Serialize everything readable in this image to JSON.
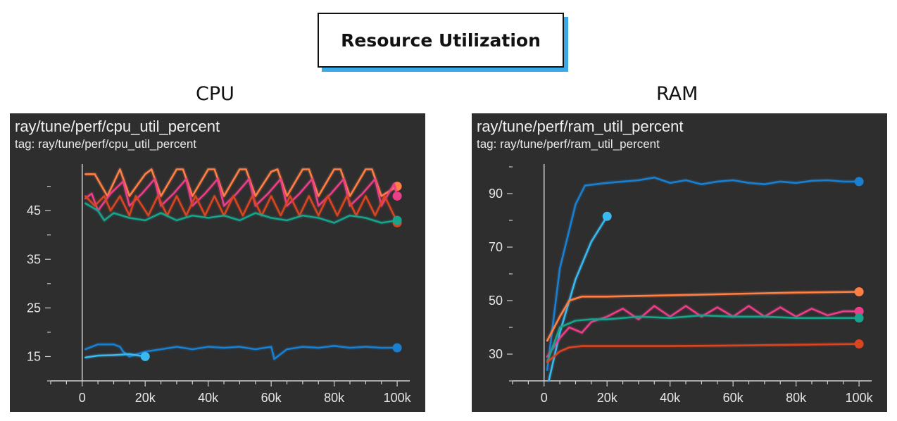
{
  "header": {
    "title": "Resource Utilization"
  },
  "sections": {
    "cpu_label": "CPU",
    "ram_label": "RAM"
  },
  "colors": {
    "panel_bg": "#2e2e2e",
    "orange": "#ff7f45",
    "pink": "#ea3f88",
    "red": "#d94520",
    "teal": "#18a38c",
    "blue": "#1b7fcf",
    "lightblue": "#3ab8f0",
    "title_shadow": "#3aa9e8"
  },
  "chart_data": [
    {
      "type": "line",
      "title": "ray/tune/perf/cpu_util_percent",
      "subtitle": "tag: ray/tune/perf/cpu_util_percent",
      "xlabel": "",
      "ylabel": "",
      "xlim": [
        -10000,
        104000
      ],
      "ylim": [
        10,
        54
      ],
      "x_ticks": [
        0,
        20000,
        40000,
        60000,
        80000,
        100000
      ],
      "x_tick_labels": [
        "0",
        "20k",
        "40k",
        "60k",
        "80k",
        "100k"
      ],
      "y_ticks": [
        15,
        25,
        35,
        45
      ],
      "y_tick_labels": [
        "15",
        "25",
        "35",
        "45"
      ],
      "grid": false,
      "legend": "none",
      "series": [
        {
          "color": "#ff7f45",
          "x": [
            1000,
            4000,
            8000,
            12000,
            15000,
            20000,
            22000,
            25000,
            30000,
            32000,
            35000,
            40000,
            42000,
            45000,
            50000,
            52000,
            55000,
            60000,
            62000,
            65000,
            70000,
            72000,
            75000,
            80000,
            82000,
            85000,
            90000,
            92000,
            95000,
            100000
          ],
          "y": [
            52.5,
            52.5,
            48,
            53.5,
            48,
            52.5,
            53.5,
            48,
            53.5,
            53.5,
            48,
            53.5,
            53.5,
            48,
            53.5,
            53.5,
            48,
            53,
            53.5,
            48,
            53.5,
            53.5,
            48,
            53.5,
            53.5,
            48,
            53.5,
            53.5,
            48,
            50
          ]
        },
        {
          "color": "#ea3f88",
          "x": [
            1000,
            3000,
            5000,
            9000,
            13000,
            15000,
            19000,
            23000,
            25000,
            29000,
            33000,
            35000,
            39000,
            43000,
            45000,
            49000,
            53000,
            55000,
            59000,
            63000,
            65000,
            69000,
            73000,
            75000,
            79000,
            83000,
            85000,
            89000,
            93000,
            95000,
            99000,
            100000
          ],
          "y": [
            47.5,
            48.5,
            45,
            48.5,
            51,
            46,
            48.5,
            51.5,
            46,
            48.5,
            51.5,
            46,
            48.5,
            51.5,
            46,
            48.5,
            51.5,
            46,
            48.5,
            51.5,
            46,
            48.5,
            51.5,
            46,
            48.5,
            51.5,
            46,
            48.5,
            51.5,
            46,
            50.5,
            48
          ]
        },
        {
          "color": "#d94520",
          "x": [
            1000,
            4000,
            7000,
            9000,
            12000,
            15000,
            17000,
            21000,
            24000,
            27000,
            30000,
            33000,
            36000,
            39000,
            42000,
            45000,
            48000,
            51000,
            54000,
            57000,
            60000,
            63000,
            66000,
            69000,
            72000,
            75000,
            78000,
            81000,
            84000,
            87000,
            90000,
            93000,
            96000,
            99000,
            100000
          ],
          "y": [
            48,
            46,
            48,
            45,
            48,
            44,
            48,
            44,
            48,
            44,
            48,
            44,
            48,
            44,
            48,
            44,
            48,
            44,
            48,
            44,
            48,
            44,
            48,
            44,
            48,
            44,
            48,
            44,
            48,
            44,
            48,
            44,
            48,
            44,
            42.5
          ]
        },
        {
          "color": "#18a38c",
          "x": [
            1000,
            5000,
            7000,
            10000,
            15000,
            20000,
            25000,
            30000,
            35000,
            40000,
            45000,
            50000,
            55000,
            60000,
            65000,
            70000,
            75000,
            80000,
            85000,
            90000,
            95000,
            100000
          ],
          "y": [
            46.5,
            45,
            43,
            44.5,
            43.5,
            43,
            44.5,
            43,
            44,
            43.5,
            44,
            43,
            44.5,
            43.5,
            43,
            44,
            43.5,
            42.5,
            44,
            43.5,
            42.5,
            43
          ]
        },
        {
          "color": "#1b7fcf",
          "x": [
            1000,
            5000,
            10000,
            12000,
            13000,
            15000,
            20000,
            25000,
            30000,
            35000,
            40000,
            45000,
            50000,
            55000,
            60000,
            61000,
            65000,
            70000,
            75000,
            80000,
            85000,
            90000,
            95000,
            100000
          ],
          "y": [
            16.5,
            17.5,
            17.5,
            17,
            16,
            15,
            16,
            16.5,
            17,
            16.5,
            17,
            16.8,
            17,
            16.5,
            17,
            14.5,
            16.5,
            17,
            16.8,
            17.2,
            16.8,
            17,
            16.8,
            16.8
          ]
        },
        {
          "color": "#3ab8f0",
          "x": [
            1000,
            5000,
            10000,
            15000,
            20000
          ],
          "y": [
            14.8,
            15.2,
            15.3,
            15.5,
            15
          ]
        }
      ]
    },
    {
      "type": "line",
      "title": "ray/tune/perf/ram_util_percent",
      "subtitle": "tag: ray/tune/perf/ram_util_percent",
      "xlabel": "",
      "ylabel": "",
      "xlim": [
        -10000,
        104000
      ],
      "ylim": [
        20,
        100
      ],
      "x_ticks": [
        0,
        20000,
        40000,
        60000,
        80000,
        100000
      ],
      "x_tick_labels": [
        "0",
        "20k",
        "40k",
        "60k",
        "80k",
        "100k"
      ],
      "y_ticks": [
        30,
        50,
        70,
        90
      ],
      "y_tick_labels": [
        "30",
        "50",
        "70",
        "90"
      ],
      "grid": false,
      "legend": "none",
      "series": [
        {
          "color": "#1b7fcf",
          "x": [
            1000,
            5000,
            10000,
            13000,
            20000,
            30000,
            35000,
            40000,
            45000,
            50000,
            55000,
            60000,
            65000,
            70000,
            75000,
            80000,
            85000,
            90000,
            95000,
            100000
          ],
          "y": [
            24,
            62,
            86,
            93,
            94,
            95,
            96,
            94,
            95,
            93.5,
            94.5,
            95,
            94,
            93.5,
            94.5,
            94,
            94.8,
            95,
            94.5,
            94.5
          ]
        },
        {
          "color": "#3ab8f0",
          "x": [
            1500,
            5000,
            10000,
            15000,
            20000
          ],
          "y": [
            20,
            38,
            58,
            72,
            81.5
          ]
        },
        {
          "color": "#ff7f45",
          "x": [
            1000,
            5000,
            8000,
            12000,
            20000,
            40000,
            60000,
            80000,
            100000
          ],
          "y": [
            35,
            44,
            50,
            51.5,
            51.5,
            52,
            52.5,
            53,
            53.3
          ]
        },
        {
          "color": "#ea3f88",
          "x": [
            1000,
            5000,
            8000,
            12000,
            15000,
            20000,
            25000,
            30000,
            35000,
            40000,
            45000,
            50000,
            55000,
            60000,
            65000,
            70000,
            75000,
            80000,
            85000,
            90000,
            95000,
            100000
          ],
          "y": [
            29,
            36,
            40,
            38,
            42,
            44,
            47,
            43,
            48,
            44,
            48,
            44,
            47.5,
            44,
            48,
            44,
            47.5,
            44,
            47,
            44.5,
            46,
            46
          ]
        },
        {
          "color": "#18a38c",
          "x": [
            1000,
            5000,
            10000,
            15000,
            20000,
            30000,
            40000,
            50000,
            60000,
            70000,
            80000,
            90000,
            100000
          ],
          "y": [
            27,
            40,
            42.5,
            43,
            43,
            44,
            43.5,
            44.5,
            44,
            44,
            43.5,
            43.5,
            43.5
          ]
        },
        {
          "color": "#d94520",
          "x": [
            1000,
            5000,
            8000,
            12000,
            20000,
            40000,
            60000,
            80000,
            100000
          ],
          "y": [
            27,
            31,
            32.5,
            33,
            33,
            33,
            33.2,
            33.5,
            33.8
          ]
        }
      ]
    }
  ]
}
